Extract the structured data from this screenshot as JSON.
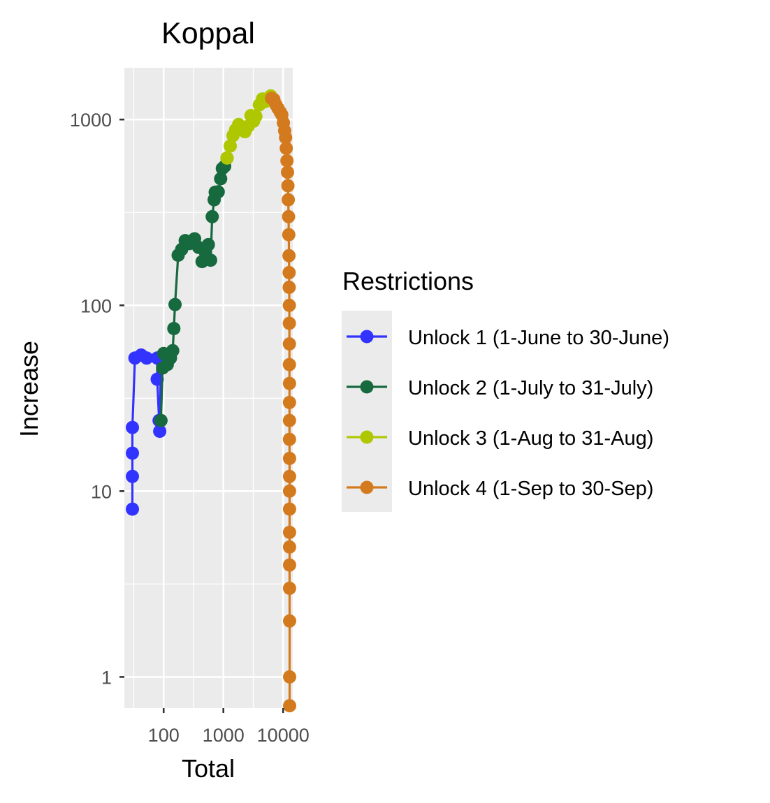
{
  "chart_data": {
    "type": "line",
    "title": "Koppal",
    "xlabel": "Total",
    "ylabel": "Increase",
    "x_scale": "log10",
    "y_scale": "log10",
    "xlim": [
      22,
      14500
    ],
    "ylim": [
      0.68,
      1900
    ],
    "x_ticks": [
      100,
      1000,
      10000
    ],
    "x_tick_labels": [
      "100",
      "1000",
      "10000"
    ],
    "y_ticks": [
      1,
      10,
      100,
      1000
    ],
    "y_tick_labels": [
      "1",
      "10",
      "100",
      "1000"
    ],
    "grid": true,
    "legend": {
      "title": "Restrictions",
      "position": "right"
    },
    "series": [
      {
        "name": "Unlock 1 (1-June to 30-June)",
        "color": "#3333ff",
        "points": [
          [
            30,
            8
          ],
          [
            30,
            12
          ],
          [
            30,
            16
          ],
          [
            30,
            22
          ],
          [
            33,
            52
          ],
          [
            42,
            54
          ],
          [
            52,
            52
          ],
          [
            78,
            52
          ],
          [
            78,
            40
          ],
          [
            84,
            24
          ],
          [
            86,
            21
          ],
          [
            90,
            52
          ],
          [
            90,
            24
          ]
        ]
      },
      {
        "name": "Unlock 2 (1-July to 31-July)",
        "color": "#17693e",
        "points": [
          [
            90,
            24
          ],
          [
            96,
            46
          ],
          [
            100,
            55
          ],
          [
            115,
            48
          ],
          [
            130,
            52
          ],
          [
            142,
            57
          ],
          [
            148,
            75
          ],
          [
            155,
            101
          ],
          [
            175,
            186
          ],
          [
            200,
            200
          ],
          [
            230,
            223
          ],
          [
            270,
            215
          ],
          [
            330,
            228
          ],
          [
            385,
            205
          ],
          [
            440,
            172
          ],
          [
            500,
            195
          ],
          [
            560,
            212
          ],
          [
            610,
            175
          ],
          [
            650,
            300
          ],
          [
            700,
            370
          ],
          [
            730,
            406
          ],
          [
            820,
            408
          ],
          [
            900,
            480
          ],
          [
            960,
            545
          ],
          [
            1050,
            560
          ],
          [
            1150,
            620
          ]
        ]
      },
      {
        "name": "Unlock 3 (1-Aug to 31-Aug)",
        "color": "#afc700",
        "points": [
          [
            1150,
            620
          ],
          [
            1300,
            720
          ],
          [
            1450,
            820
          ],
          [
            1600,
            880
          ],
          [
            1800,
            940
          ],
          [
            2050,
            900
          ],
          [
            2300,
            860
          ],
          [
            2600,
            920
          ],
          [
            2900,
            1050
          ],
          [
            3200,
            980
          ],
          [
            3500,
            1040
          ],
          [
            4000,
            1200
          ],
          [
            4500,
            1290
          ],
          [
            5000,
            1250
          ],
          [
            5600,
            1300
          ],
          [
            6200,
            1340
          ]
        ]
      },
      {
        "name": "Unlock 4 (1-Sep to 30-Sep)",
        "color": "#d47a1e",
        "points": [
          [
            6400,
            1300
          ],
          [
            7000,
            1280
          ],
          [
            7600,
            1200
          ],
          [
            8200,
            1150
          ],
          [
            8900,
            1100
          ],
          [
            9500,
            1060
          ],
          [
            10100,
            960
          ],
          [
            10600,
            870
          ],
          [
            11000,
            800
          ],
          [
            11300,
            700
          ],
          [
            11600,
            600
          ],
          [
            11850,
            520
          ],
          [
            12050,
            440
          ],
          [
            12200,
            370
          ],
          [
            12350,
            300
          ],
          [
            12450,
            240
          ],
          [
            12550,
            185
          ],
          [
            12600,
            150
          ],
          [
            12650,
            125
          ],
          [
            12700,
            100
          ],
          [
            12720,
            80
          ],
          [
            12740,
            62
          ],
          [
            12750,
            48
          ],
          [
            12760,
            38
          ],
          [
            12770,
            30
          ],
          [
            12780,
            24
          ],
          [
            12790,
            19
          ],
          [
            12800,
            15
          ],
          [
            12805,
            12
          ],
          [
            12810,
            10
          ],
          [
            12815,
            8
          ],
          [
            12820,
            6
          ],
          [
            12822,
            5
          ],
          [
            12824,
            4
          ],
          [
            12826,
            3
          ],
          [
            12828,
            2
          ],
          [
            12830,
            1
          ],
          [
            12832,
            0.7
          ]
        ]
      }
    ]
  }
}
